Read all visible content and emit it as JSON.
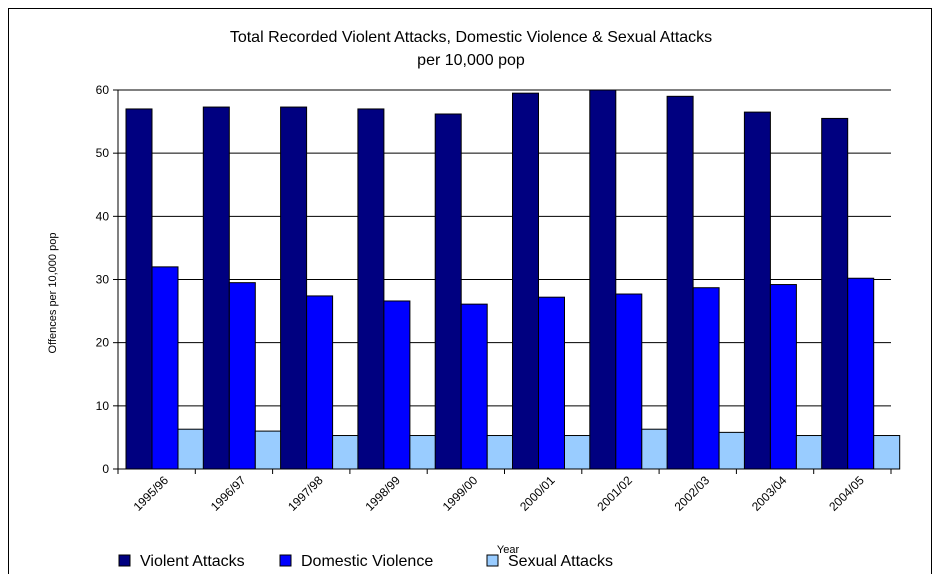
{
  "chart_data": {
    "type": "bar",
    "title": "Total Recorded Violent Attacks, Domestic Violence & Sexual Attacks",
    "subtitle": "per 10,000 pop",
    "xlabel": "Year",
    "ylabel": "Offences per 10,000 pop",
    "ylim": [
      0,
      60
    ],
    "yticks": [
      0,
      10,
      20,
      30,
      40,
      50,
      60
    ],
    "grid": true,
    "legend_position": "bottom",
    "categories": [
      "1995/96",
      "1996/97",
      "1997/98",
      "1998/99",
      "1999/00",
      "2000/01",
      "2001/02",
      "2002/03",
      "2003/04",
      "2004/05"
    ],
    "series": [
      {
        "name": "Violent Attacks",
        "color": "#000080",
        "values": [
          57.0,
          57.3,
          57.3,
          57.0,
          56.2,
          59.5,
          60.0,
          59.0,
          56.5,
          55.5
        ]
      },
      {
        "name": "Domestic Violence",
        "color": "#0000FF",
        "values": [
          32.0,
          29.5,
          27.4,
          26.6,
          26.1,
          27.2,
          27.7,
          28.7,
          29.2,
          30.2
        ]
      },
      {
        "name": "Sexual Attacks",
        "color": "#99CCFF",
        "values": [
          6.3,
          6.0,
          5.3,
          5.3,
          5.3,
          5.3,
          6.3,
          5.8,
          5.3,
          5.3
        ]
      }
    ]
  }
}
